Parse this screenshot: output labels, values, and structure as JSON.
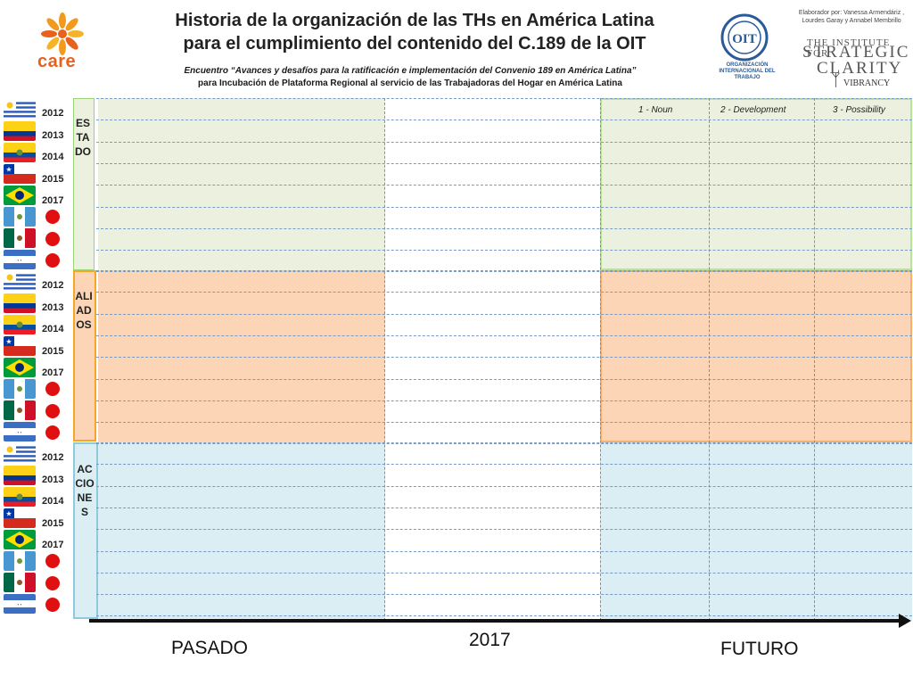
{
  "header": {
    "title_line1": "Historia de la organización de las THs en América Latina",
    "title_line2": "para el cumplimiento del contenido del C.189 de la OIT",
    "subtitle_line1": "Encuentro “Avances y desafíos para la ratificación e implementación del Convenio 189 en América Latina”",
    "subtitle_line2": "para Incubación de Plataforma Regional al servicio de las Trabajadoras del Hogar en América Latina",
    "care_logo_text": "care",
    "oit_logo_text": "OIT",
    "oit_caption": "ORGANIZACIÓN INTERNACIONAL DEL TRABAJO",
    "credits": "Elaborador por: Vanessa Armendáriz , Lourdes Garay y Annabel Membrillo",
    "isc_line1": "The Institute for",
    "isc_line2": "Strategic",
    "isc_line3": "Clarity",
    "vibrancy": "VIBRANCY"
  },
  "column_headers": [
    "1 - Noun",
    "2 - Development",
    "3 - Possibility"
  ],
  "sections": [
    {
      "label": "ESTADO",
      "color": "#ebf1de",
      "border": "#9bd27a"
    },
    {
      "label": "ALIADOS",
      "color": "#fbd5b5",
      "border": "#f5a623"
    },
    {
      "label": "ACCIONES",
      "color": "#dbeef4",
      "border": "#8fc9dd"
    }
  ],
  "years": [
    "2012",
    "2013",
    "2014",
    "2015",
    "2017"
  ],
  "flags": [
    "uruguay",
    "colombia",
    "ecuador",
    "chile",
    "brazil",
    "guatemala",
    "mexico",
    "nicaragua"
  ],
  "axis": {
    "left_label": "PASADO",
    "center_label": "2017",
    "right_label": "FUTURO"
  },
  "colors": {
    "estado_bg": "#ebf1de",
    "aliados_bg": "#fbd5b5",
    "acciones_bg": "#dbeef4",
    "dot_red": "#e01010",
    "grid_line": "#7a9bc7"
  }
}
